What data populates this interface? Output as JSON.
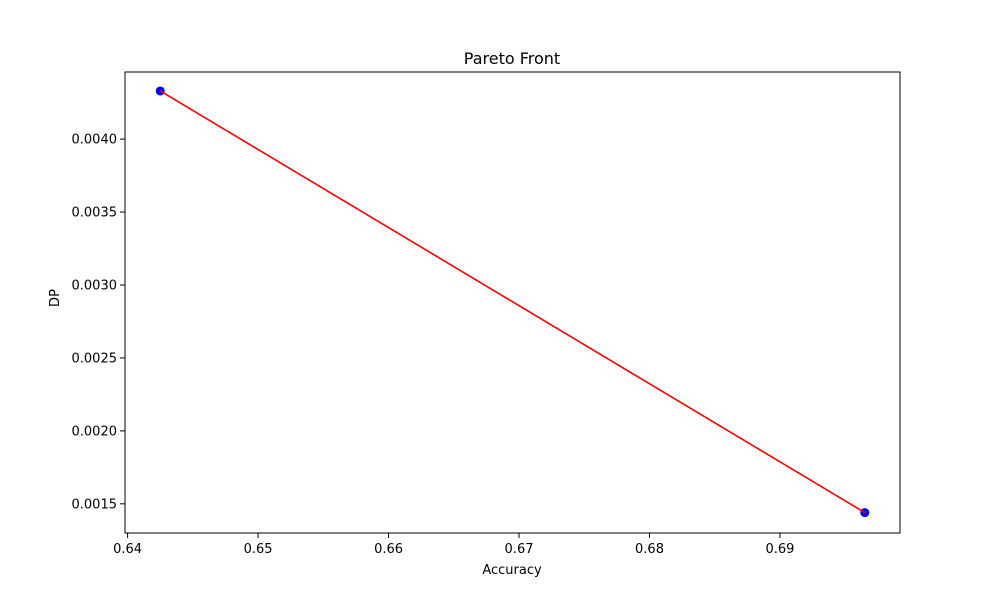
{
  "chart_data": {
    "type": "line",
    "title": "Pareto Front",
    "xlabel": "Accuracy",
    "ylabel": "DP",
    "xlim": [
      0.6398,
      0.6992
    ],
    "ylim": [
      0.0013,
      0.00446
    ],
    "x_ticks": [
      0.64,
      0.65,
      0.66,
      0.67,
      0.68,
      0.69
    ],
    "x_tick_labels": [
      "0.64",
      "0.65",
      "0.66",
      "0.67",
      "0.68",
      "0.69"
    ],
    "y_ticks": [
      0.0015,
      0.002,
      0.0025,
      0.003,
      0.0035,
      0.004
    ],
    "y_tick_labels": [
      "0.0015",
      "0.0020",
      "0.0025",
      "0.0030",
      "0.0035",
      "0.0040"
    ],
    "grid": false,
    "series": [
      {
        "kind": "scatter",
        "color": "#0000ff",
        "points": [
          {
            "x": 0.6425,
            "y": 0.00433
          },
          {
            "x": 0.6965,
            "y": 0.00144
          }
        ]
      },
      {
        "kind": "line",
        "color": "#ff0000",
        "points": [
          {
            "x": 0.6425,
            "y": 0.00433
          },
          {
            "x": 0.6965,
            "y": 0.00144
          }
        ]
      }
    ]
  }
}
